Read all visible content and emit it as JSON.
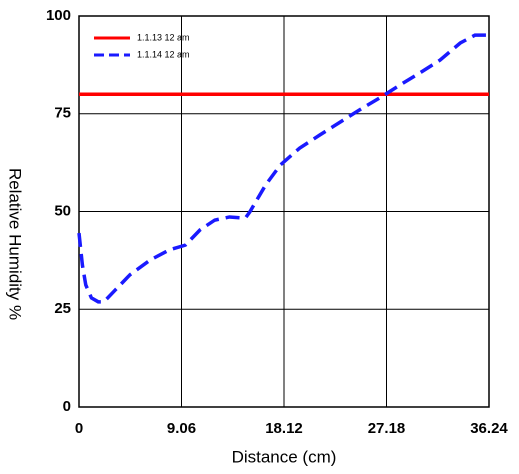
{
  "chart_data": {
    "type": "line",
    "x_label": "Distance (cm)",
    "y_label": "Relative Humidity %",
    "xlim": [
      0,
      36.24
    ],
    "xticks": [
      0,
      9.06,
      18.12,
      27.18,
      36.24
    ],
    "ylim": [
      0,
      100
    ],
    "yticks": [
      0,
      25,
      50,
      75,
      100
    ],
    "grid": true,
    "legend": "upper-left",
    "series": [
      {
        "name": "1.1.13  12 am",
        "color": "#ff0000",
        "dashed": false,
        "x": [
          0,
          36.24
        ],
        "values": [
          80,
          80
        ]
      },
      {
        "name": "1.1.14  12 am",
        "color": "#1a1aff",
        "dashed": true,
        "x": [
          0,
          0.3,
          0.6,
          1.1,
          1.7,
          2.2,
          3.2,
          4.5,
          6.3,
          8.0,
          9.4,
          10.7,
          12.0,
          13.3,
          14.7,
          15.1,
          16.5,
          17.8,
          19.5,
          21.3,
          23.1,
          24.8,
          26.6,
          28.4,
          30.1,
          31.9,
          33.7,
          35.0,
          36.24
        ],
        "values": [
          44.5,
          36.3,
          31.2,
          27.9,
          26.9,
          26.9,
          29.9,
          33.8,
          37.6,
          40.2,
          41.4,
          45.3,
          47.8,
          48.6,
          48.3,
          49.9,
          56.8,
          61.9,
          66.2,
          69.6,
          72.9,
          76.0,
          79.1,
          82.4,
          85.4,
          88.7,
          93.1,
          95.1,
          95.1
        ]
      }
    ]
  }
}
